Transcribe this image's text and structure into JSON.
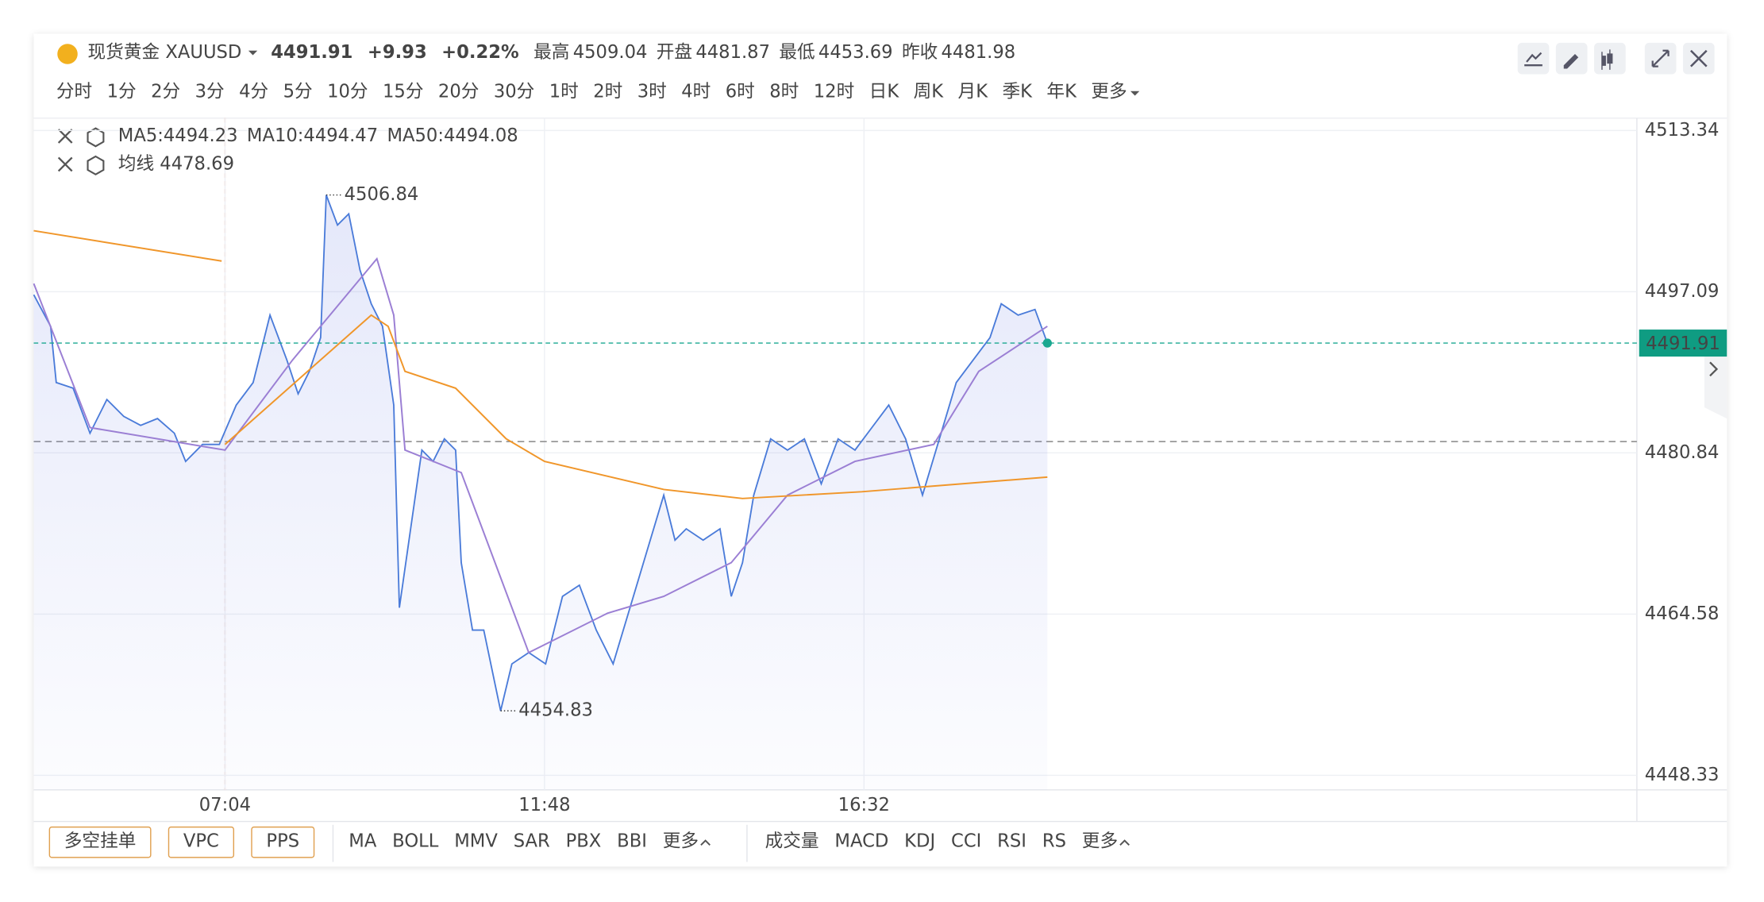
{
  "header": {
    "name": "现货黄金 XAUUSD",
    "price": 4491.91,
    "change": "+9.93",
    "change_pct": "+0.22%",
    "stats": [
      {
        "label": "最高",
        "value": 4509.04
      },
      {
        "label": "开盘",
        "value": 4481.87
      },
      {
        "label": "最低",
        "value": 4453.69
      },
      {
        "label": "昨收",
        "value": 4481.98
      }
    ]
  },
  "timeframes": [
    "分时",
    "1分",
    "2分",
    "3分",
    "4分",
    "5分",
    "10分",
    "15分",
    "20分",
    "30分",
    "1时",
    "2时",
    "3时",
    "4时",
    "6时",
    "8时",
    "12时",
    "日K",
    "周K",
    "月K",
    "季K",
    "年K",
    "更多"
  ],
  "indicator_legend": {
    "ma": [
      "MA5:4494.23",
      "MA10:4494.47",
      "MA50:4494.08"
    ],
    "avg": "均线 4478.69"
  },
  "chart_data": {
    "type": "line",
    "xlim": [
      254,
      1679
    ],
    "xticks": [
      {
        "value": 424,
        "label": "07:04"
      },
      {
        "value": 708,
        "label": "11:48"
      },
      {
        "value": 992,
        "label": "16:32"
      }
    ],
    "ylim": [
      4448.33,
      4513.34
    ],
    "yticks": [
      4513.34,
      4497.09,
      4480.84,
      4464.58,
      4448.33
    ],
    "series": [
      {
        "color": "#4a7bd9",
        "fill": true,
        "x": [
          254,
          269,
          274,
          289,
          304,
          319,
          334,
          349,
          364,
          379,
          389,
          404,
          419,
          434,
          449,
          464,
          479,
          489,
          499,
          509,
          514,
          524,
          534,
          544,
          554,
          564,
          574,
          579,
          589,
          599,
          609,
          619,
          629,
          634,
          644,
          654,
          669,
          679,
          694,
          709,
          724,
          739,
          754,
          769,
          784,
          799,
          814,
          824,
          834,
          849,
          864,
          874,
          884,
          894,
          909,
          924,
          939,
          954,
          969,
          984,
          999,
          1014,
          1029,
          1044,
          1059,
          1074,
          1089,
          1104,
          1114,
          1129,
          1144,
          1155
        ],
        "values": [
          4496.78,
          4493.6,
          4487.93,
          4487.36,
          4482.82,
          4486.22,
          4484.52,
          4483.61,
          4484.3,
          4482.82,
          4479.98,
          4481.69,
          4481.69,
          4485.66,
          4487.93,
          4494.73,
          4490.2,
          4486.79,
          4489.06,
          4492.46,
          4506.84,
          4503.81,
          4504.94,
          4499.27,
          4495.87,
          4493.6,
          4485.66,
          4465.23,
          4473.18,
          4481.12,
          4479.98,
          4482.25,
          4481.12,
          4469.77,
          4462.97,
          4462.97,
          4454.83,
          4459.56,
          4460.7,
          4459.56,
          4466.37,
          4467.5,
          4462.97,
          4459.56,
          4465.23,
          4470.91,
          4476.58,
          4472.04,
          4473.18,
          4472.04,
          4473.18,
          4466.37,
          4469.77,
          4476.58,
          4482.25,
          4481.12,
          4482.25,
          4477.72,
          4482.25,
          4481.12,
          4483.39,
          4485.66,
          4482.25,
          4476.58,
          4482.25,
          4487.93,
          4490.2,
          4492.46,
          4495.87,
          4494.73,
          4495.3,
          4491.91
        ]
      },
      {
        "color": "#9b7fd4",
        "fill": false,
        "x": [
          254,
          304,
          424,
          484,
          559,
          574,
          584,
          634,
          694,
          764,
          814,
          874,
          924,
          984,
          1054,
          1094,
          1155
        ],
        "values": [
          4497.91,
          4483.39,
          4481.12,
          4490.2,
          4500.41,
          4494.73,
          4481.12,
          4478.85,
          4460.7,
          4464.67,
          4466.37,
          4469.77,
          4476.58,
          4479.98,
          4481.69,
          4489.06,
          4493.6
        ]
      },
      {
        "color": "#f0962a",
        "fill": false,
        "x": [
          254,
          421,
          422,
          424,
          554,
          569,
          584,
          629,
          674,
          708,
          814,
          884,
          990,
          1155
        ],
        "values": [
          4503.24,
          4500.18,
          null,
          4481.69,
          4494.73,
          4493.6,
          4489.06,
          4487.36,
          4482.25,
          4479.98,
          4477.15,
          4476.24,
          4476.92,
          4478.4
        ]
      }
    ],
    "max_point": {
      "x": 514,
      "value": 4506.84
    },
    "min_point": {
      "x": 669,
      "value": 4454.83
    },
    "grid": true
  },
  "bottom_bar": {
    "buttons": [
      "多空挂单",
      "VPC",
      "PPS"
    ],
    "main_indicators": [
      "MA",
      "BOLL",
      "MMV",
      "SAR",
      "PBX",
      "BBI",
      "更多"
    ],
    "sub_indicators": [
      "成交量",
      "MACD",
      "KDJ",
      "CCI",
      "RSI",
      "RS",
      "更多"
    ]
  }
}
